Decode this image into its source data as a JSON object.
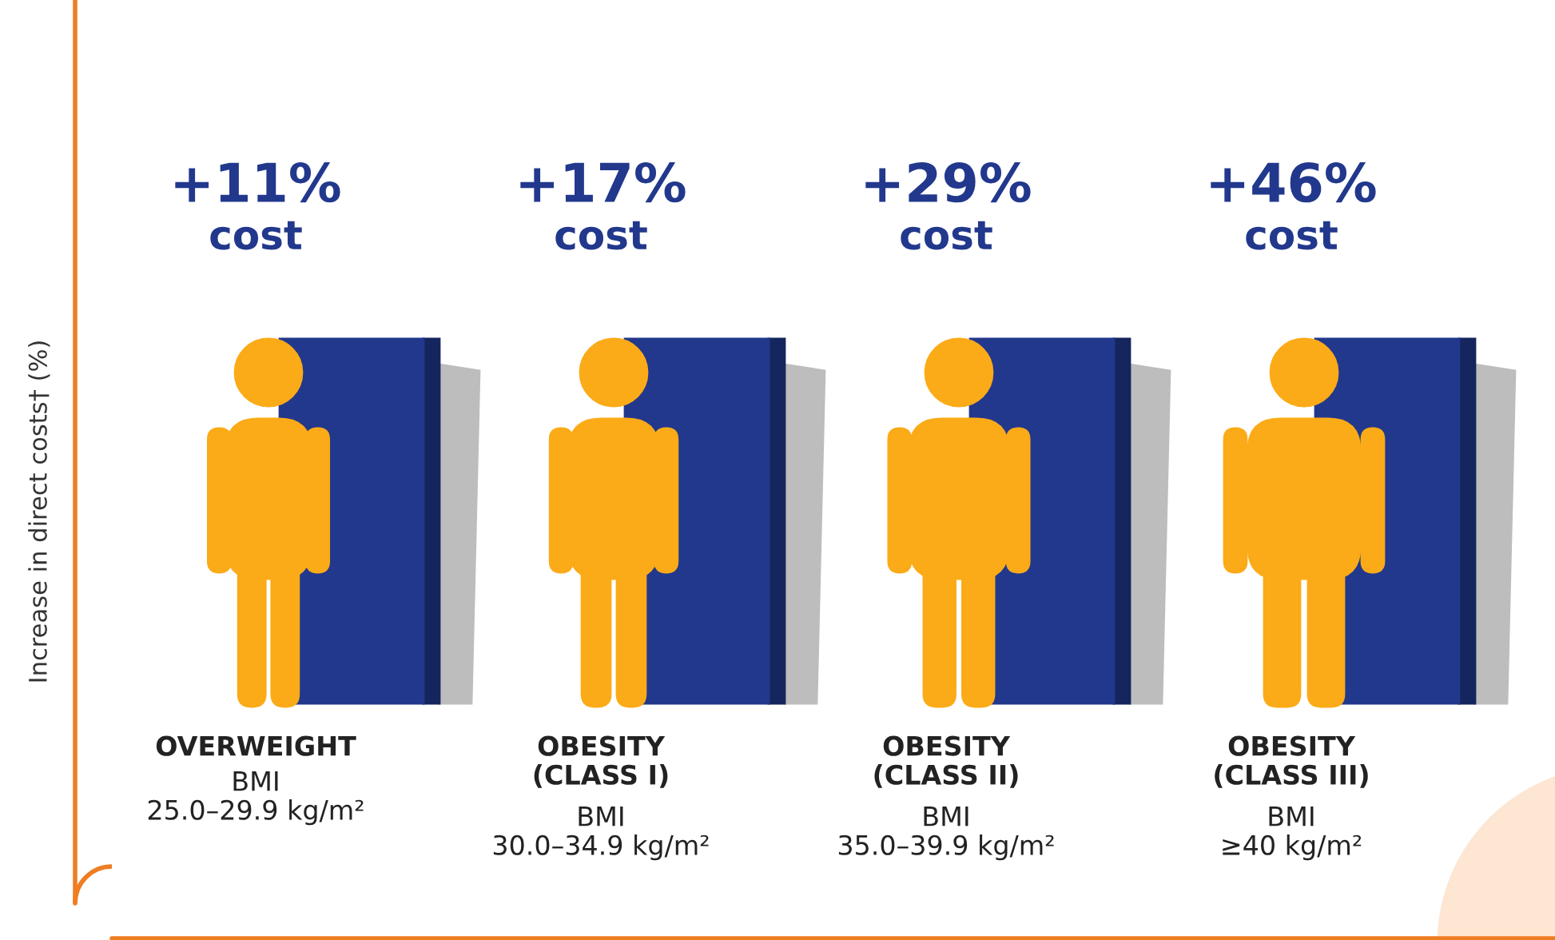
{
  "chart_data": {
    "type": "other",
    "ylabel": "Increase in direct costs† (%)",
    "categories": [
      "OVERWEIGHT",
      "OBESITY\n(CLASS I)",
      "OBESITY\n(CLASS II)",
      "OBESITY\n(CLASS III)"
    ],
    "values": [
      11,
      17,
      29,
      46
    ],
    "value_labels": [
      "+11%\ncost",
      "+17%\ncost",
      "+29%\ncost",
      "+46%\ncost"
    ],
    "annotations": [
      "BMI\n25.0–29.9 kg/m²",
      "BMI\n30.0–34.9 kg/m²",
      "BMI\n35.0–39.9 kg/m²",
      "BMI\n≥40 kg/m²"
    ],
    "color": "#22388c"
  }
}
